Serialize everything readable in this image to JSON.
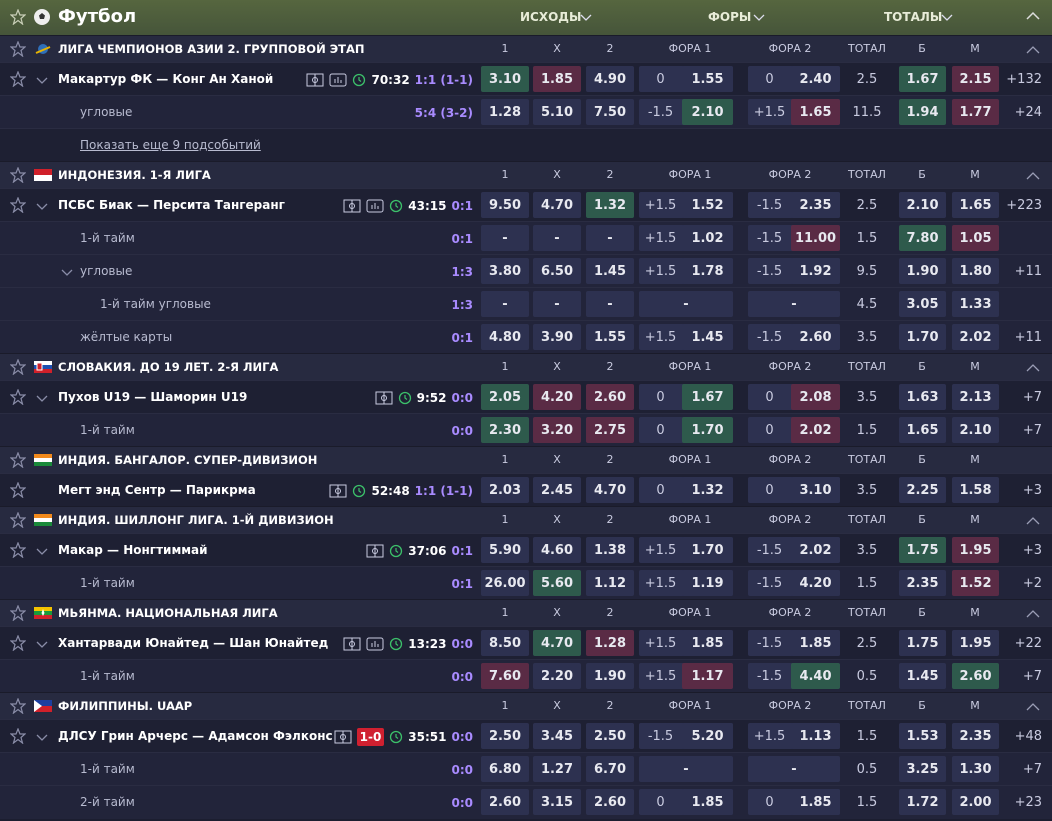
{
  "header": {
    "title": "Футбол",
    "tabs": [
      "ИСХОДЫ",
      "ФОРЫ",
      "ТОТАЛЫ"
    ]
  },
  "columns": [
    "1",
    "X",
    "2",
    "ФОРА 1",
    "ФОРА 2",
    "ТОТАЛ",
    "Б",
    "М"
  ],
  "leagues": [
    {
      "name": "ЛИГА ЧЕМПИОНОВ АЗИИ 2. ГРУППОВОЙ ЭТАП",
      "collapse": true,
      "rows": [
        {
          "name": "Макартур ФК — Конг Ан Ханой",
          "level": 0,
          "chevron": true,
          "stats": 2,
          "time": "70:32",
          "score": "1:1 (1-1)",
          "odds": [
            "3.10",
            "1.85",
            "4.90"
          ],
          "f1": [
            "0",
            "1.55"
          ],
          "f2": [
            "0",
            "2.40"
          ],
          "total": [
            "2.5",
            "1.67",
            "2.15"
          ],
          "more": "+132",
          "up": [
            0,
            5
          ],
          "down": [
            1,
            6
          ]
        },
        {
          "name": "угловые",
          "level": 1,
          "score": "5:4 (3-2)",
          "odds": [
            "1.28",
            "5.10",
            "7.50"
          ],
          "f1": [
            "-1.5",
            "2.10"
          ],
          "f2": [
            "+1.5",
            "1.65"
          ],
          "total": [
            "11.5",
            "1.94",
            "1.77"
          ],
          "more": "+24",
          "up": [
            3,
            5
          ],
          "down": [
            4,
            6
          ]
        },
        {
          "link": "Показать еще 9 подсобытий"
        }
      ]
    },
    {
      "name": "ИНДОНЕЗИЯ. 1-Я ЛИГА",
      "collapse": true,
      "rows": [
        {
          "name": "ПСБС Биак — Персита Тангеранг",
          "level": 0,
          "chevron": true,
          "stats": 2,
          "time": "43:15",
          "score": "0:1",
          "odds": [
            "9.50",
            "4.70",
            "1.32"
          ],
          "f1": [
            "+1.5",
            "1.52"
          ],
          "f2": [
            "-1.5",
            "2.35"
          ],
          "total": [
            "2.5",
            "2.10",
            "1.65"
          ],
          "more": "+223",
          "up": [
            2
          ],
          "down": []
        },
        {
          "name": "1-й тайм",
          "level": 1,
          "score": "0:1",
          "odds": [
            "-",
            "-",
            "-"
          ],
          "f1": [
            "+1.5",
            "1.02"
          ],
          "f2": [
            "-1.5",
            "11.00"
          ],
          "total": [
            "1.5",
            "7.80",
            "1.05"
          ],
          "up": [
            5
          ],
          "down": [
            4,
            6
          ]
        },
        {
          "name": "угловые",
          "level": 1,
          "chevron": true,
          "score": "1:3",
          "odds": [
            "3.80",
            "6.50",
            "1.45"
          ],
          "f1": [
            "+1.5",
            "1.78"
          ],
          "f2": [
            "-1.5",
            "1.92"
          ],
          "total": [
            "9.5",
            "1.90",
            "1.80"
          ],
          "more": "+11",
          "up": [],
          "down": []
        },
        {
          "name": "1-й тайм угловые",
          "level": 2,
          "score": "1:3",
          "odds": [
            "-",
            "-",
            "-"
          ],
          "f1": [
            "-"
          ],
          "f2": [
            "-"
          ],
          "total": [
            "4.5",
            "3.05",
            "1.33"
          ],
          "up": [],
          "down": []
        },
        {
          "name": "жёлтые карты",
          "level": 1,
          "score": "0:1",
          "odds": [
            "4.80",
            "3.90",
            "1.55"
          ],
          "f1": [
            "+1.5",
            "1.45"
          ],
          "f2": [
            "-1.5",
            "2.60"
          ],
          "total": [
            "3.5",
            "1.70",
            "2.02"
          ],
          "more": "+11",
          "up": [],
          "down": []
        }
      ]
    },
    {
      "name": "СЛОВАКИЯ. ДО 19 ЛЕТ. 2-Я ЛИГА",
      "collapse": true,
      "rows": [
        {
          "name": "Пухов U19 — Шаморин U19",
          "level": 0,
          "chevron": true,
          "stats": 1,
          "time": "9:52",
          "score": "0:0",
          "odds": [
            "2.05",
            "4.20",
            "2.60"
          ],
          "f1": [
            "0",
            "1.67"
          ],
          "f2": [
            "0",
            "2.08"
          ],
          "total": [
            "3.5",
            "1.63",
            "2.13"
          ],
          "more": "+7",
          "up": [
            0,
            3
          ],
          "down": [
            1,
            2,
            4
          ]
        },
        {
          "name": "1-й тайм",
          "level": 1,
          "score": "0:0",
          "odds": [
            "2.30",
            "3.20",
            "2.75"
          ],
          "f1": [
            "0",
            "1.70"
          ],
          "f2": [
            "0",
            "2.02"
          ],
          "total": [
            "1.5",
            "1.65",
            "2.10"
          ],
          "more": "+7",
          "up": [
            0,
            3
          ],
          "down": [
            1,
            2,
            4
          ]
        }
      ]
    },
    {
      "name": "ИНДИЯ. БАНГАЛОР. СУПЕР-ДИВИЗИОН",
      "collapse": false,
      "rows": [
        {
          "name": "Мегт энд Сентр — Парикрма",
          "level": 0,
          "chevron": false,
          "stats": 1,
          "time": "52:48",
          "score": "1:1 (1-1)",
          "odds": [
            "2.03",
            "2.45",
            "4.70"
          ],
          "f1": [
            "0",
            "1.32"
          ],
          "f2": [
            "0",
            "3.10"
          ],
          "total": [
            "3.5",
            "2.25",
            "1.58"
          ],
          "more": "+3",
          "up": [],
          "down": []
        }
      ]
    },
    {
      "name": "ИНДИЯ. ШИЛЛОНГ ЛИГА. 1-Й ДИВИЗИОН",
      "collapse": true,
      "rows": [
        {
          "name": "Макар — Нонгтиммай",
          "level": 0,
          "chevron": true,
          "stats": 1,
          "time": "37:06",
          "score": "0:1",
          "odds": [
            "5.90",
            "4.60",
            "1.38"
          ],
          "f1": [
            "+1.5",
            "1.70"
          ],
          "f2": [
            "-1.5",
            "2.02"
          ],
          "total": [
            "3.5",
            "1.75",
            "1.95"
          ],
          "more": "+3",
          "up": [
            5
          ],
          "down": [
            6
          ]
        },
        {
          "name": "1-й тайм",
          "level": 1,
          "score": "0:1",
          "odds": [
            "26.00",
            "5.60",
            "1.12"
          ],
          "f1": [
            "+1.5",
            "1.19"
          ],
          "f2": [
            "-1.5",
            "4.20"
          ],
          "total": [
            "1.5",
            "2.35",
            "1.52"
          ],
          "more": "+2",
          "up": [
            1
          ],
          "down": [
            6
          ]
        }
      ]
    },
    {
      "name": "МЬЯНМА. НАЦИОНАЛЬНАЯ ЛИГА",
      "collapse": true,
      "rows": [
        {
          "name": "Хантарвади Юнайтед — Шан Юнайтед",
          "level": 0,
          "chevron": true,
          "stats": 2,
          "time": "13:23",
          "score": "0:0",
          "odds": [
            "8.50",
            "4.70",
            "1.28"
          ],
          "f1": [
            "+1.5",
            "1.85"
          ],
          "f2": [
            "-1.5",
            "1.85"
          ],
          "total": [
            "2.5",
            "1.75",
            "1.95"
          ],
          "more": "+22",
          "up": [
            1
          ],
          "down": [
            2
          ]
        },
        {
          "name": "1-й тайм",
          "level": 1,
          "score": "0:0",
          "odds": [
            "7.60",
            "2.20",
            "1.90"
          ],
          "f1": [
            "+1.5",
            "1.17"
          ],
          "f2": [
            "-1.5",
            "4.40"
          ],
          "total": [
            "0.5",
            "1.45",
            "2.60"
          ],
          "more": "+7",
          "up": [
            4,
            6
          ],
          "down": [
            0,
            3
          ]
        }
      ]
    },
    {
      "name": "ФИЛИППИНЫ. UAAP",
      "collapse": true,
      "rows": [
        {
          "name": "ДЛСУ Грин Арчерс — Адамсон Фэлконс",
          "level": 0,
          "chevron": true,
          "stats": 1,
          "redcard": "1-0",
          "time": "35:51",
          "score": "0:0",
          "odds": [
            "2.50",
            "3.45",
            "2.50"
          ],
          "f1": [
            "-1.5",
            "5.20"
          ],
          "f2": [
            "+1.5",
            "1.13"
          ],
          "total": [
            "1.5",
            "1.53",
            "2.35"
          ],
          "more": "+48",
          "up": [],
          "down": []
        },
        {
          "name": "1-й тайм",
          "level": 1,
          "score": "0:0",
          "odds": [
            "6.80",
            "1.27",
            "6.70"
          ],
          "f1": [
            "-"
          ],
          "f2": [
            "-"
          ],
          "total": [
            "0.5",
            "3.25",
            "1.30"
          ],
          "more": "+7",
          "up": [],
          "down": []
        },
        {
          "name": "2-й тайм",
          "level": 1,
          "score": "0:0",
          "odds": [
            "2.60",
            "3.15",
            "2.60"
          ],
          "f1": [
            "0",
            "1.85"
          ],
          "f2": [
            "0",
            "1.85"
          ],
          "total": [
            "1.5",
            "1.72",
            "2.00"
          ],
          "more": "+23",
          "up": [],
          "down": []
        }
      ]
    }
  ]
}
